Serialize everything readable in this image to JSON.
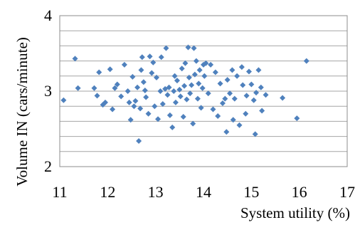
{
  "chart_data": {
    "type": "scatter",
    "title": "",
    "xlabel": "System utility (%)",
    "ylabel": "Volume IN (cars/minute)",
    "xlim": [
      11,
      17
    ],
    "ylim": [
      2,
      4
    ],
    "x_ticks": [
      "11",
      "12",
      "13",
      "14",
      "15",
      "16",
      "17"
    ],
    "y_ticks": [
      "2",
      "3",
      "4"
    ],
    "horizontal_grid": true,
    "legend": "none",
    "marker": "diamond",
    "color": "#4f81bd",
    "series": [
      {
        "points": [
          [
            11.08,
            2.88
          ],
          [
            11.32,
            3.43
          ],
          [
            11.38,
            3.04
          ],
          [
            11.72,
            3.04
          ],
          [
            11.78,
            2.94
          ],
          [
            11.82,
            3.25
          ],
          [
            11.9,
            2.82
          ],
          [
            11.95,
            2.85
          ],
          [
            12.05,
            3.29
          ],
          [
            12.1,
            2.76
          ],
          [
            12.15,
            3.04
          ],
          [
            12.2,
            3.09
          ],
          [
            12.28,
            2.93
          ],
          [
            12.35,
            3.35
          ],
          [
            12.42,
            3.0
          ],
          [
            12.45,
            2.85
          ],
          [
            12.48,
            2.62
          ],
          [
            12.52,
            3.19
          ],
          [
            12.55,
            2.8
          ],
          [
            12.58,
            2.87
          ],
          [
            12.62,
            3.05
          ],
          [
            12.65,
            2.34
          ],
          [
            12.68,
            2.77
          ],
          [
            12.7,
            3.28
          ],
          [
            12.72,
            3.45
          ],
          [
            12.75,
            3.12
          ],
          [
            12.78,
            3.01
          ],
          [
            12.8,
            2.92
          ],
          [
            12.85,
            2.7
          ],
          [
            12.88,
            3.46
          ],
          [
            12.92,
            3.24
          ],
          [
            12.95,
            3.38
          ],
          [
            12.98,
            2.8
          ],
          [
            13.02,
            3.18
          ],
          [
            13.05,
            2.63
          ],
          [
            13.1,
            3.0
          ],
          [
            13.12,
            3.45
          ],
          [
            13.15,
            2.83
          ],
          [
            13.2,
            3.03
          ],
          [
            13.22,
            3.57
          ],
          [
            13.25,
            2.95
          ],
          [
            13.28,
            3.05
          ],
          [
            13.3,
            2.68
          ],
          [
            13.35,
            2.52
          ],
          [
            13.38,
            3.0
          ],
          [
            13.4,
            3.2
          ],
          [
            13.42,
            2.85
          ],
          [
            13.45,
            3.14
          ],
          [
            13.5,
            3.02
          ],
          [
            13.52,
            2.93
          ],
          [
            13.55,
            3.3
          ],
          [
            13.58,
            2.66
          ],
          [
            13.6,
            3.07
          ],
          [
            13.62,
            3.37
          ],
          [
            13.65,
            2.89
          ],
          [
            13.68,
            3.58
          ],
          [
            13.7,
            3.18
          ],
          [
            13.72,
            2.97
          ],
          [
            13.75,
            3.08
          ],
          [
            13.78,
            2.57
          ],
          [
            13.8,
            3.57
          ],
          [
            13.82,
            3.22
          ],
          [
            13.85,
            3.4
          ],
          [
            13.88,
            2.9
          ],
          [
            13.9,
            3.1
          ],
          [
            13.92,
            3.28
          ],
          [
            13.95,
            2.78
          ],
          [
            13.98,
            3.04
          ],
          [
            14.0,
            3.35
          ],
          [
            14.02,
            3.2
          ],
          [
            14.05,
            3.37
          ],
          [
            14.1,
            2.97
          ],
          [
            14.15,
            3.35
          ],
          [
            14.2,
            2.76
          ],
          [
            14.25,
            3.25
          ],
          [
            14.3,
            2.67
          ],
          [
            14.35,
            3.1
          ],
          [
            14.4,
            2.84
          ],
          [
            14.45,
            2.9
          ],
          [
            14.48,
            2.46
          ],
          [
            14.5,
            3.15
          ],
          [
            14.55,
            2.97
          ],
          [
            14.6,
            3.28
          ],
          [
            14.62,
            2.62
          ],
          [
            14.65,
            2.9
          ],
          [
            14.7,
            3.2
          ],
          [
            14.75,
            2.55
          ],
          [
            14.8,
            3.32
          ],
          [
            14.82,
            3.08
          ],
          [
            14.88,
            2.7
          ],
          [
            14.9,
            2.94
          ],
          [
            14.95,
            3.26
          ],
          [
            15.0,
            3.09
          ],
          [
            15.05,
            2.88
          ],
          [
            15.08,
            2.43
          ],
          [
            15.1,
            2.98
          ],
          [
            15.15,
            3.28
          ],
          [
            15.2,
            3.05
          ],
          [
            15.22,
            2.74
          ],
          [
            15.3,
            2.95
          ],
          [
            15.65,
            2.91
          ],
          [
            15.95,
            2.64
          ],
          [
            16.15,
            3.4
          ]
        ]
      }
    ]
  }
}
